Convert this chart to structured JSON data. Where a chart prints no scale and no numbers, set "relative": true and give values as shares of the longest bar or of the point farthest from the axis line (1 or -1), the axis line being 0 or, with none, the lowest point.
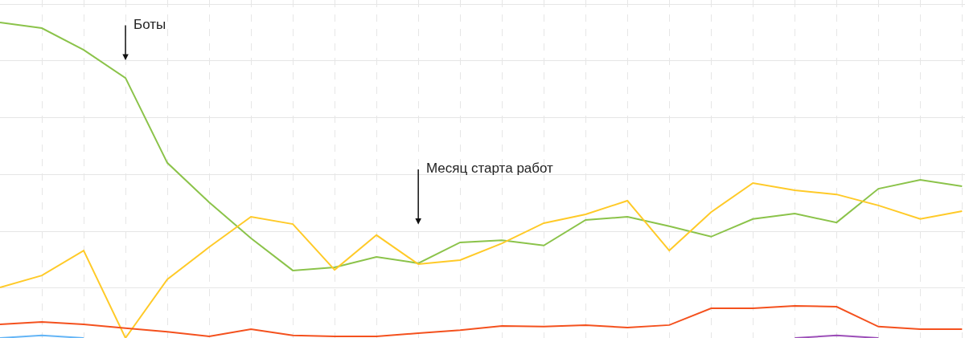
{
  "chart_data": {
    "type": "line",
    "relative": true,
    "grid": true,
    "legend": false,
    "marker": "none",
    "line_style": "solid",
    "categories": [
      null,
      null,
      null,
      null,
      null,
      null,
      null,
      null,
      null,
      null,
      null,
      null,
      null,
      null,
      null,
      null,
      null,
      null,
      null,
      null,
      null,
      null,
      null,
      null
    ],
    "series": [
      {
        "color": "#8bc34a",
        "values": [
          1.0,
          0.982,
          0.913,
          0.824,
          0.555,
          0.43,
          0.316,
          0.214,
          0.224,
          0.257,
          0.237,
          0.303,
          0.31,
          0.293,
          0.374,
          0.384,
          0.354,
          0.321,
          0.377,
          0.394,
          0.366,
          0.473,
          0.501,
          0.481
        ]
      },
      {
        "color": "#ffca28",
        "values": [
          0.16,
          0.198,
          0.277,
          0.0,
          0.186,
          0.288,
          0.384,
          0.361,
          0.216,
          0.326,
          0.234,
          0.247,
          0.3,
          0.364,
          0.392,
          0.435,
          0.277,
          0.399,
          0.491,
          0.468,
          0.455,
          0.42,
          0.377,
          0.402
        ]
      },
      {
        "color": "#f4511e",
        "values": [
          0.043,
          0.051,
          0.043,
          0.031,
          0.02,
          0.005,
          0.028,
          0.008,
          0.005,
          0.005,
          0.015,
          0.025,
          0.038,
          0.036,
          0.041,
          0.033,
          0.041,
          0.094,
          0.094,
          0.102,
          0.099,
          0.036,
          0.028,
          0.028
        ]
      },
      {
        "color": "#64b5f6",
        "values": [
          0.0,
          0.008,
          0.0,
          null,
          null,
          null,
          null,
          null,
          null,
          null,
          null,
          null,
          null,
          null,
          null,
          null,
          null,
          null,
          null,
          null,
          null,
          null,
          null,
          null
        ]
      },
      {
        "color": "#9c4fb8",
        "values": [
          null,
          null,
          null,
          null,
          null,
          null,
          null,
          null,
          null,
          null,
          null,
          null,
          null,
          null,
          null,
          null,
          null,
          null,
          null,
          0.0,
          0.008,
          0.0,
          null,
          null
        ]
      }
    ],
    "annotations": [
      "Боты",
      "Месяц старта работ"
    ]
  }
}
